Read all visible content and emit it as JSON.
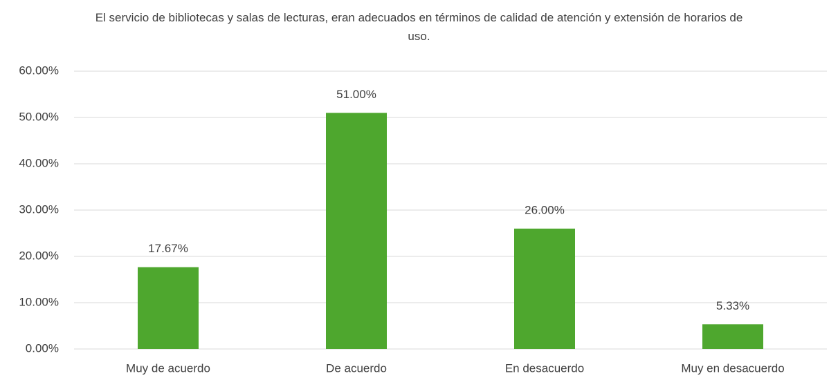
{
  "chart_data": {
    "type": "bar",
    "title": "El servicio de bibliotecas y salas de lecturas, eran adecuados en términos de calidad de atención y extensión de horarios de uso.",
    "categories": [
      "Muy de acuerdo",
      "De acuerdo",
      "En desacuerdo",
      "Muy en desacuerdo"
    ],
    "values": [
      17.67,
      51,
      26,
      5.33
    ],
    "value_labels": [
      "17.67%",
      "51.00%",
      "26.00%",
      "5.33%"
    ],
    "color": "#4ea72e",
    "ylim": [
      0,
      60
    ],
    "yticks": [
      {
        "value": 0,
        "label": "0.00%"
      },
      {
        "value": 10,
        "label": "10.00%"
      },
      {
        "value": 20,
        "label": "20.00%"
      },
      {
        "value": 30,
        "label": "30.00%"
      },
      {
        "value": 40,
        "label": "40.00%"
      },
      {
        "value": 50,
        "label": "50.00%"
      },
      {
        "value": 60,
        "label": "60.00%"
      }
    ],
    "grid": true
  }
}
